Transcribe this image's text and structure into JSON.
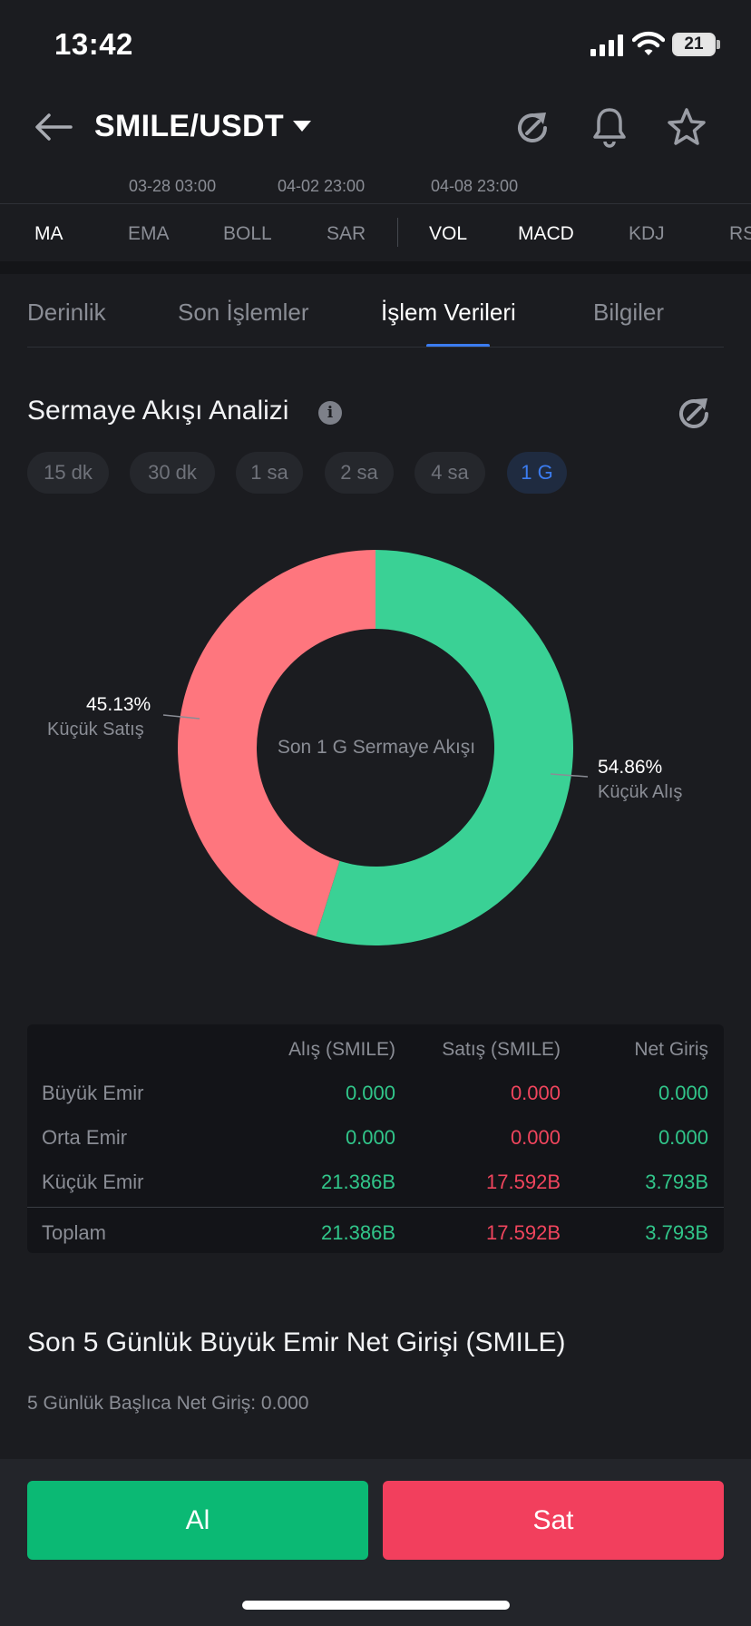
{
  "status_bar": {
    "time": "13:42",
    "battery": "21"
  },
  "header": {
    "pair": "SMILE/USDT"
  },
  "date_labels": [
    "03-28 03:00",
    "04-02 23:00",
    "04-08 23:00"
  ],
  "indicators": [
    "MA",
    "EMA",
    "BOLL",
    "SAR",
    "VOL",
    "MACD",
    "KDJ",
    "RSI"
  ],
  "tabs": [
    "Derinlik",
    "Son İşlemler",
    "İşlem Verileri",
    "Bilgiler"
  ],
  "section": {
    "title": "Sermaye Akışı Analizi",
    "info": "i"
  },
  "chips": [
    "15 dk",
    "30 dk",
    "1 sa",
    "2 sa",
    "4 sa",
    "1 G"
  ],
  "chart_data": {
    "type": "pie",
    "title": "Son 1 G Sermaye Akışı",
    "slices": [
      {
        "label": "Küçük Alış",
        "percent": "54.86%",
        "value": 54.86,
        "color": "#3ad195"
      },
      {
        "label": "Küçük Satış",
        "percent": "45.13%",
        "value": 45.13,
        "color": "#fe767e"
      }
    ]
  },
  "table": {
    "headers": [
      "Alış (SMILE)",
      "Satış (SMILE)",
      "Net Giriş"
    ],
    "rows": [
      {
        "label": "Büyük Emir",
        "buy": "0.000",
        "sell": "0.000",
        "net": "0.000"
      },
      {
        "label": "Orta Emir",
        "buy": "0.000",
        "sell": "0.000",
        "net": "0.000"
      },
      {
        "label": "Küçük Emir",
        "buy": "21.386B",
        "sell": "17.592B",
        "net": "3.793B"
      }
    ],
    "total": {
      "label": "Toplam",
      "buy": "21.386B",
      "sell": "17.592B",
      "net": "3.793B"
    }
  },
  "five_day": {
    "title": "Son 5 Günlük Büyük Emir Net Girişi (SMILE)",
    "subtitle": "5 Günlük Başlıca Net Giriş: 0.000"
  },
  "actions": {
    "buy": "Al",
    "sell": "Sat"
  }
}
